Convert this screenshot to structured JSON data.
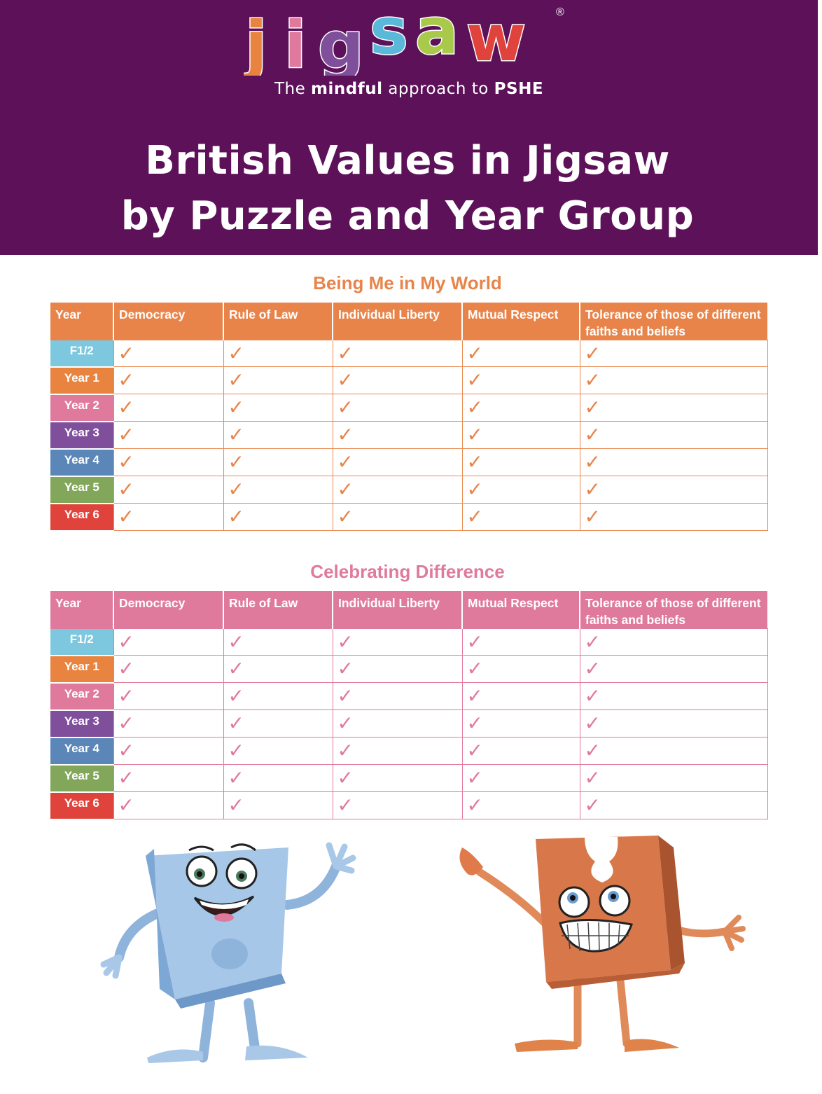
{
  "header": {
    "logo_text": "jigsaw",
    "registered_mark": "®",
    "tagline_prefix": "The",
    "tagline_bold1": "mindful",
    "tagline_mid": "approach to",
    "tagline_bold2": "PSHE",
    "title_line1": "British Values in Jigsaw",
    "title_line2": "by Puzzle and Year Group"
  },
  "colors": {
    "header_bg": "#5c1159",
    "section1_accent": "#e8844a",
    "section2_accent": "#e07a9c",
    "F1/2": "#7ec8df",
    "Year 1": "#e8843f",
    "Year 2": "#e07a9c",
    "Year 3": "#7f4f9b",
    "Year 4": "#5b86b8",
    "Year 5": "#82a65a",
    "Year 6": "#e0433c"
  },
  "check_symbol": "✓",
  "sections": [
    {
      "title": "Being Me in My World",
      "headers": [
        "Year",
        "Democracy",
        "Rule of Law",
        "Individual Liberty",
        "Mutual Respect",
        "Tolerance of those of different faiths and beliefs"
      ],
      "rows": [
        {
          "year": "F1/2",
          "checks": [
            true,
            true,
            true,
            true,
            true
          ]
        },
        {
          "year": "Year 1",
          "checks": [
            true,
            true,
            true,
            true,
            true
          ]
        },
        {
          "year": "Year 2",
          "checks": [
            true,
            true,
            true,
            true,
            true
          ]
        },
        {
          "year": "Year 3",
          "checks": [
            true,
            true,
            true,
            true,
            true
          ]
        },
        {
          "year": "Year 4",
          "checks": [
            true,
            true,
            true,
            true,
            true
          ]
        },
        {
          "year": "Year 5",
          "checks": [
            true,
            true,
            true,
            true,
            true
          ]
        },
        {
          "year": "Year 6",
          "checks": [
            true,
            true,
            true,
            true,
            true
          ]
        }
      ]
    },
    {
      "title": "Celebrating Difference",
      "headers": [
        "Year",
        "Democracy",
        "Rule of Law",
        "Individual Liberty",
        "Mutual Respect",
        "Tolerance of those of different faiths and beliefs"
      ],
      "rows": [
        {
          "year": "F1/2",
          "checks": [
            true,
            true,
            true,
            true,
            true
          ]
        },
        {
          "year": "Year 1",
          "checks": [
            true,
            true,
            true,
            true,
            true
          ]
        },
        {
          "year": "Year 2",
          "checks": [
            true,
            true,
            true,
            true,
            true
          ]
        },
        {
          "year": "Year 3",
          "checks": [
            true,
            true,
            true,
            true,
            true
          ]
        },
        {
          "year": "Year 4",
          "checks": [
            true,
            true,
            true,
            true,
            true
          ]
        },
        {
          "year": "Year 5",
          "checks": [
            true,
            true,
            true,
            true,
            true
          ]
        },
        {
          "year": "Year 6",
          "checks": [
            true,
            true,
            true,
            true,
            true
          ]
        }
      ]
    }
  ]
}
